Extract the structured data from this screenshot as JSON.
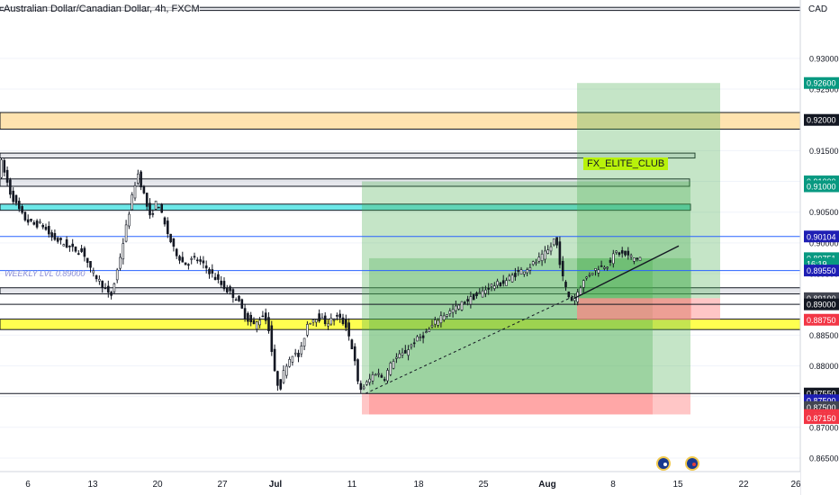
{
  "header": {
    "title": "Australian Dollar/Canadian Dollar, 4h, FXCM",
    "currency": "CAD"
  },
  "annotations": {
    "weekly_level": "WEEKLY LVL 0.89000",
    "club": "FX_ELITE_CLUB"
  },
  "colors": {
    "up": "#26a69a",
    "candle": "#131722",
    "zone_gray": "#d1d4dc",
    "zone_orange": "#ffe0a6",
    "zone_cyan": "#5ce5e5",
    "zone_yellow": "#ffff3d",
    "profit": "#4caf50",
    "loss": "#ff8080",
    "blue_line": "#2962ff",
    "label_green": "#089981",
    "label_blue": "#1e1eb4",
    "label_red": "#f23645",
    "label_gray": "#434651"
  },
  "chart_data": {
    "type": "candlestick",
    "ylim": [
      0.8628,
      0.9395
    ],
    "y_ticks": [
      "0.86500",
      "0.87000",
      "0.87500",
      "0.88000",
      "0.88500",
      "0.89000",
      "0.89500",
      "0.90000",
      "0.90500",
      "0.91000",
      "0.91500",
      "0.92000",
      "0.92500",
      "0.93000"
    ],
    "x_ticks": [
      "6",
      "13",
      "20",
      "27",
      "Jul",
      "11",
      "18",
      "25",
      "Aug",
      "8",
      "15",
      "22",
      "26"
    ],
    "price_path": [
      [
        0,
        0.91
      ],
      [
        4,
        0.9135
      ],
      [
        9,
        0.911
      ],
      [
        15,
        0.908
      ],
      [
        22,
        0.906
      ],
      [
        30,
        0.904
      ],
      [
        40,
        0.903
      ],
      [
        50,
        0.903
      ],
      [
        60,
        0.901
      ],
      [
        72,
        0.9
      ],
      [
        84,
        0.899
      ],
      [
        96,
        0.8985
      ],
      [
        104,
        0.8955
      ],
      [
        110,
        0.8945
      ],
      [
        118,
        0.893
      ],
      [
        126,
        0.891
      ],
      [
        132,
        0.8945
      ],
      [
        140,
        0.9
      ],
      [
        148,
        0.906
      ],
      [
        156,
        0.9115
      ],
      [
        163,
        0.908
      ],
      [
        170,
        0.904
      ],
      [
        178,
        0.907
      ],
      [
        186,
        0.903
      ],
      [
        196,
        0.899
      ],
      [
        208,
        0.8965
      ],
      [
        220,
        0.8975
      ],
      [
        232,
        0.896
      ],
      [
        244,
        0.894
      ],
      [
        254,
        0.8925
      ],
      [
        266,
        0.891
      ],
      [
        276,
        0.888
      ],
      [
        286,
        0.8865
      ],
      [
        296,
        0.8885
      ],
      [
        302,
        0.886
      ],
      [
        308,
        0.879
      ],
      [
        314,
        0.876
      ],
      [
        320,
        0.88
      ],
      [
        328,
        0.882
      ],
      [
        336,
        0.8815
      ],
      [
        345,
        0.887
      ],
      [
        355,
        0.888
      ],
      [
        366,
        0.887
      ],
      [
        378,
        0.888
      ],
      [
        388,
        0.8865
      ],
      [
        396,
        0.882
      ],
      [
        402,
        0.876
      ],
      [
        410,
        0.877
      ],
      [
        420,
        0.879
      ],
      [
        430,
        0.878
      ],
      [
        440,
        0.881
      ],
      [
        452,
        0.882
      ],
      [
        464,
        0.884
      ],
      [
        478,
        0.8855
      ],
      [
        492,
        0.888
      ],
      [
        506,
        0.889
      ],
      [
        520,
        0.8905
      ],
      [
        534,
        0.8915
      ],
      [
        548,
        0.893
      ],
      [
        562,
        0.8935
      ],
      [
        576,
        0.895
      ],
      [
        590,
        0.896
      ],
      [
        604,
        0.8975
      ],
      [
        614,
        0.899
      ],
      [
        620,
        0.901
      ],
      [
        624,
        0.898
      ],
      [
        628,
        0.8945
      ],
      [
        634,
        0.8915
      ],
      [
        640,
        0.8905
      ],
      [
        648,
        0.893
      ],
      [
        658,
        0.895
      ],
      [
        668,
        0.896
      ],
      [
        678,
        0.8965
      ],
      [
        688,
        0.8985
      ],
      [
        698,
        0.898
      ],
      [
        708,
        0.8975
      ],
      [
        714,
        0.8976
      ]
    ],
    "dashed_trendline": [
      [
        406,
        0.8755
      ],
      [
        640,
        0.8915
      ]
    ],
    "solid_trendline": [
      [
        638,
        0.891
      ],
      [
        754,
        0.8995
      ]
    ],
    "zones": [
      {
        "color": "gray",
        "top": 0.9383,
        "bottom": 0.9378,
        "x0": 0,
        "x1": 932
      },
      {
        "color": "orange",
        "top": 0.9212,
        "bottom": 0.9185,
        "x0": 0,
        "x1": 932
      },
      {
        "color": "gray",
        "top": 0.9146,
        "bottom": 0.9138,
        "x0": 0,
        "x1": 772
      },
      {
        "color": "gray",
        "top": 0.9104,
        "bottom": 0.9092,
        "x0": 0,
        "x1": 766
      },
      {
        "color": "cyan",
        "top": 0.9063,
        "bottom": 0.9053,
        "x0": 0,
        "x1": 767
      },
      {
        "color": "gray",
        "top": 0.8927,
        "bottom": 0.8917,
        "x0": 0,
        "x1": 932
      },
      {
        "color": "yellow",
        "top": 0.8876,
        "bottom": 0.8859,
        "x0": 0,
        "x1": 932
      }
    ],
    "horizontal_lines": [
      {
        "price": 0.90104,
        "color": "blue"
      },
      {
        "price": 0.8955,
        "color": "blue"
      },
      {
        "price": 0.89,
        "color": "black"
      },
      {
        "price": 0.8755,
        "color": "black"
      }
    ],
    "positions": [
      {
        "x0": 402,
        "x1": 767,
        "entry": 0.8755,
        "target": 0.91,
        "stop": 0.8721
      },
      {
        "x0": 410,
        "x1": 725,
        "entry": 0.8755,
        "target": 0.8975,
        "stop": 0.8721
      },
      {
        "x0": 641,
        "x1": 800,
        "entry": 0.891,
        "target": 0.926,
        "stop": 0.8875
      },
      {
        "x0": 641,
        "x1": 768,
        "entry": 0.891,
        "target": 0.8975,
        "stop": 0.8875
      }
    ],
    "price_labels": [
      {
        "text": "0.92600",
        "price": 0.926,
        "color": "green"
      },
      {
        "text": "0.92000",
        "price": 0.92,
        "color": "black"
      },
      {
        "text": "0.91000",
        "price": 0.91,
        "color": "green"
      },
      {
        "text": "0.91000",
        "price": 0.9092,
        "color": "green"
      },
      {
        "text": "0.90104",
        "price": 0.90104,
        "color": "blue"
      },
      {
        "text": "0.89751",
        "price": 0.89751,
        "color": "green"
      },
      {
        "text": "16:19",
        "price": 0.8966,
        "color": "green"
      },
      {
        "text": "0.89550",
        "price": 0.8955,
        "color": "blue"
      },
      {
        "text": "0.89100",
        "price": 0.891,
        "color": "gray"
      },
      {
        "text": "0.89000",
        "price": 0.89,
        "color": "black"
      },
      {
        "text": "0.88750",
        "price": 0.8875,
        "color": "red"
      },
      {
        "text": "0.87550",
        "price": 0.8755,
        "color": "black"
      },
      {
        "text": "0.87500",
        "price": 0.8744,
        "color": "blue"
      },
      {
        "text": "0.87500",
        "price": 0.8733,
        "color": "gray"
      },
      {
        "text": "0.87200",
        "price": 0.872,
        "color": "red"
      },
      {
        "text": "0.87150",
        "price": 0.8715,
        "color": "red"
      }
    ]
  }
}
